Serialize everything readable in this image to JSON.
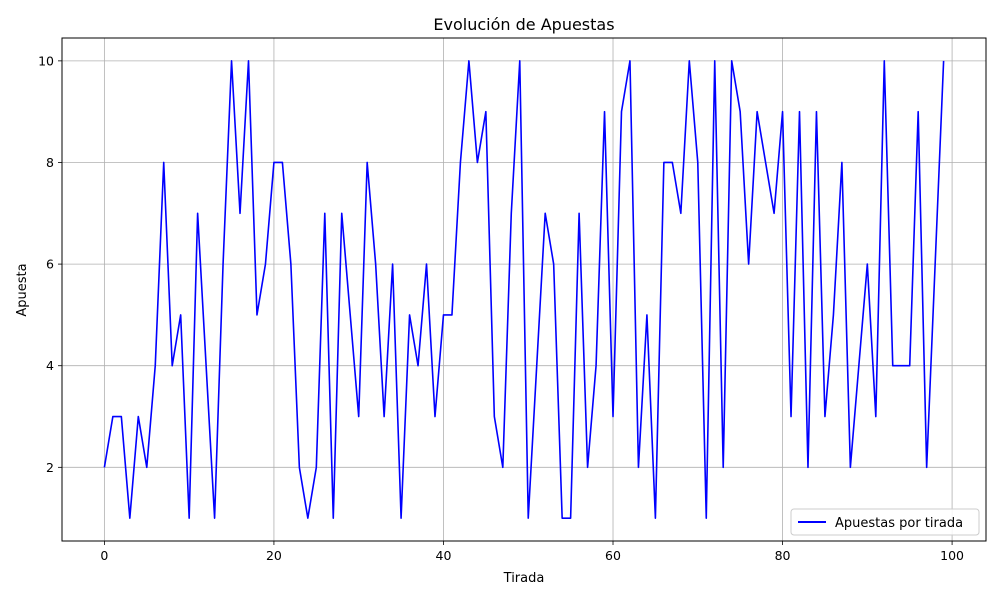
{
  "chart_data": {
    "type": "line",
    "title": "Evolución de Apuestas",
    "xlabel": "Tirada",
    "ylabel": "Apuesta",
    "xlim": [
      -5,
      104
    ],
    "ylim": [
      0.55,
      10.45
    ],
    "xticks": [
      0,
      20,
      40,
      60,
      80,
      100
    ],
    "yticks": [
      2,
      4,
      6,
      8,
      10
    ],
    "grid": true,
    "legend_position": "bottom-right",
    "series": [
      {
        "name": "Apuestas por tirada",
        "color": "#0000ff",
        "x": [
          0,
          1,
          2,
          3,
          4,
          5,
          6,
          7,
          8,
          9,
          10,
          11,
          12,
          13,
          14,
          15,
          16,
          17,
          18,
          19,
          20,
          21,
          22,
          23,
          24,
          25,
          26,
          27,
          28,
          29,
          30,
          31,
          32,
          33,
          34,
          35,
          36,
          37,
          38,
          39,
          40,
          41,
          42,
          43,
          44,
          45,
          46,
          47,
          48,
          49,
          50,
          51,
          52,
          53,
          54,
          55,
          56,
          57,
          58,
          59,
          60,
          61,
          62,
          63,
          64,
          65,
          66,
          67,
          68,
          69,
          70,
          71,
          72,
          73,
          74,
          75,
          76,
          77,
          78,
          79,
          80,
          81,
          82,
          83,
          84,
          85,
          86,
          87,
          88,
          89,
          90,
          91,
          92,
          93,
          94,
          95,
          96,
          97,
          98,
          99
        ],
        "values": [
          2,
          3,
          3,
          1,
          3,
          2,
          4,
          8,
          4,
          5,
          1,
          7,
          4,
          1,
          6,
          10,
          7,
          10,
          5,
          6,
          8,
          8,
          6,
          2,
          1,
          2,
          7,
          1,
          7,
          5,
          3,
          8,
          6,
          3,
          6,
          1,
          5,
          4,
          6,
          3,
          5,
          5,
          8,
          10,
          8,
          9,
          3,
          2,
          7,
          10,
          1,
          4,
          7,
          6,
          1,
          1,
          7,
          2,
          4,
          9,
          3,
          9,
          10,
          2,
          5,
          1,
          8,
          8,
          7,
          10,
          8,
          1,
          10,
          2,
          10,
          9,
          6,
          9,
          8,
          7,
          9,
          3,
          9,
          2,
          9,
          3,
          5,
          8,
          2,
          4,
          6,
          3,
          10,
          4,
          4,
          4,
          9,
          2,
          6,
          10
        ]
      }
    ]
  }
}
